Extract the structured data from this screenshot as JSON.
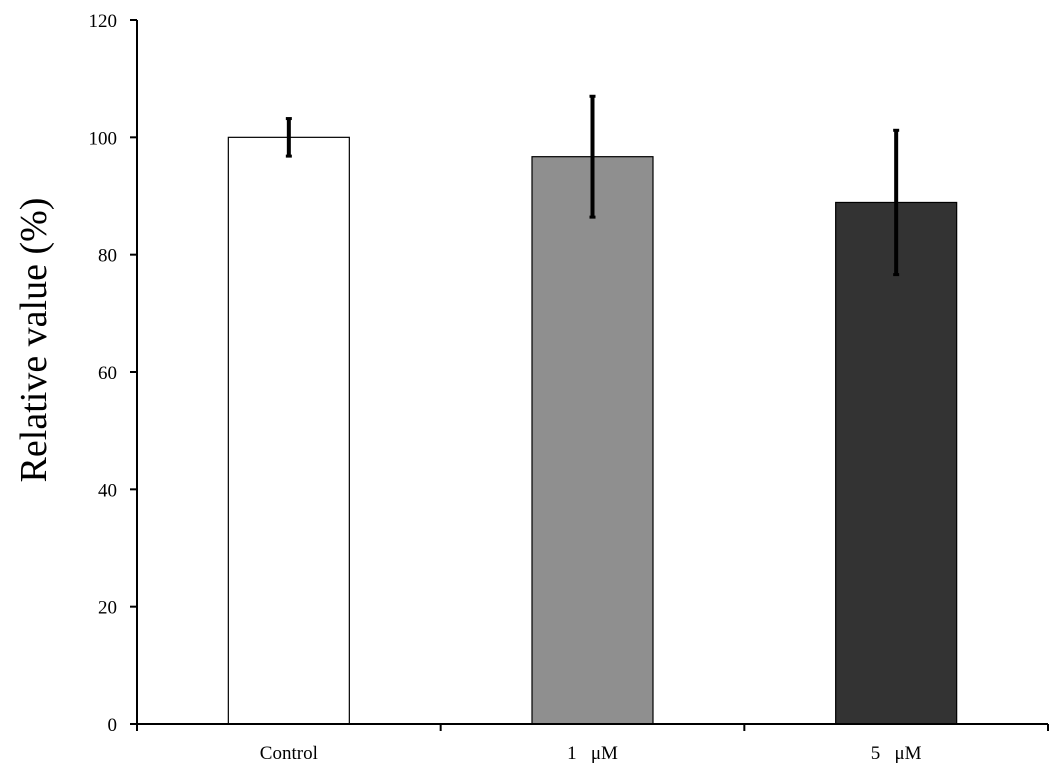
{
  "chart_data": {
    "type": "bar",
    "categories": [
      "Control",
      "1   μM",
      "5   μM"
    ],
    "values": [
      100,
      96.7,
      88.9
    ],
    "error": [
      3.2,
      10.3,
      12.3
    ],
    "colors": [
      "#ffffff",
      "#8f8f8f",
      "#333333"
    ],
    "title": "",
    "xlabel": "",
    "ylabel": "Relative value (%)",
    "ylim": [
      0,
      120
    ],
    "yticks": [
      0,
      20,
      40,
      60,
      80,
      100,
      120
    ],
    "ytick_labels": [
      "0",
      "20",
      "40",
      "60",
      "80",
      "100",
      "120"
    ],
    "grid": false,
    "legend": "none"
  }
}
